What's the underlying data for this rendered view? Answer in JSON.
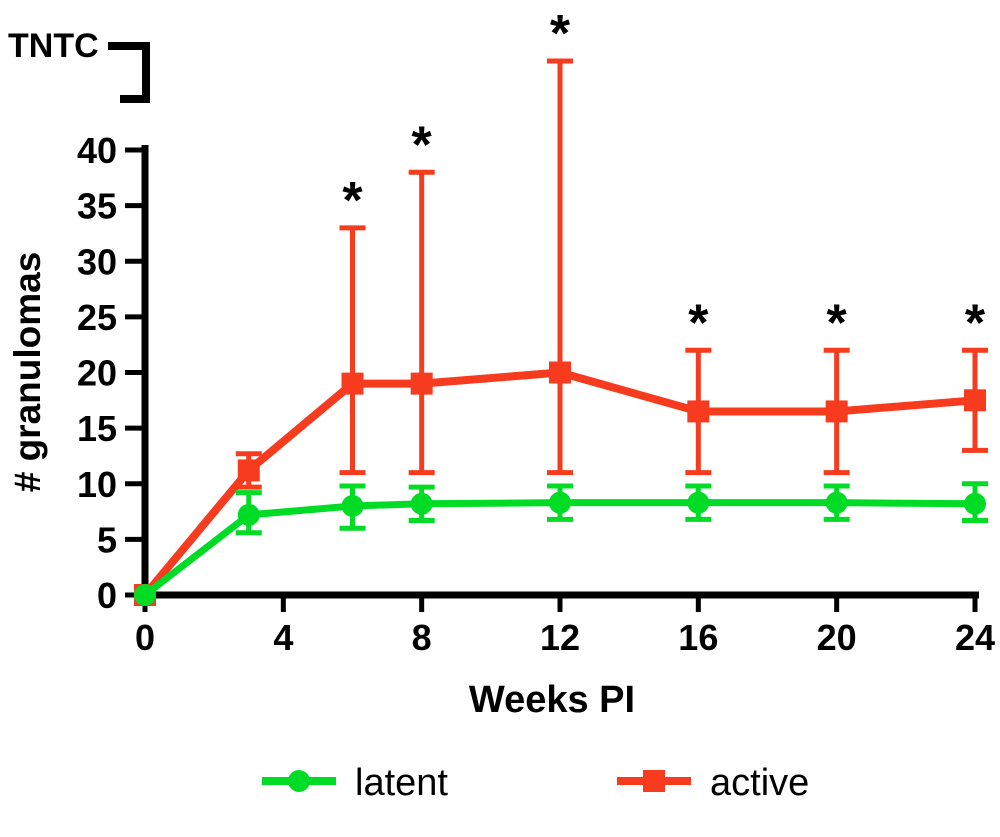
{
  "chart_data": {
    "type": "line",
    "title": "",
    "xlabel": "Weeks PI",
    "ylabel": "# granulomas",
    "broken_axis_label": "TNTC",
    "grid": false,
    "legend_position": "bottom",
    "xlim": [
      0,
      24
    ],
    "ylim": [
      0,
      40
    ],
    "xticks": [
      0,
      4,
      8,
      12,
      16,
      20,
      24
    ],
    "yticks": [
      0,
      5,
      10,
      15,
      20,
      25,
      30,
      35,
      40
    ],
    "x": [
      0,
      3,
      6,
      8,
      12,
      16,
      20,
      24
    ],
    "series": [
      {
        "name": "latent",
        "color": "#00DC25",
        "marker": "circle",
        "values": [
          0,
          7.2,
          8.0,
          8.2,
          8.3,
          8.3,
          8.3,
          8.2
        ],
        "err_up": [
          0,
          2.0,
          1.8,
          1.5,
          1.5,
          1.5,
          1.5,
          1.8
        ],
        "err_down": [
          0,
          1.6,
          2.0,
          1.5,
          1.5,
          1.5,
          1.5,
          1.5
        ]
      },
      {
        "name": "active",
        "color": "#F63B1E",
        "marker": "square",
        "values": [
          0,
          11.2,
          19,
          19,
          20,
          16.5,
          16.5,
          17.5
        ],
        "err_up": [
          0,
          1.5,
          14,
          19,
          28,
          5.5,
          5.5,
          4.5
        ],
        "err_down": [
          0,
          1.5,
          8,
          8,
          9,
          5.5,
          5.5,
          4.5
        ]
      }
    ],
    "significance": {
      "symbol": "*",
      "x": [
        6,
        8,
        12,
        16,
        20,
        24
      ]
    }
  }
}
